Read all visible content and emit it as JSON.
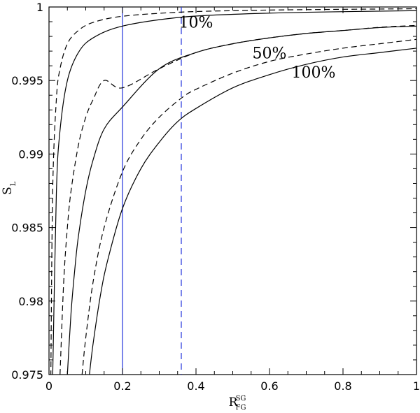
{
  "chart_data": {
    "type": "line",
    "xlabel": {
      "main": "R",
      "sup": "SG",
      "sub": "FG"
    },
    "ylabel": {
      "main": "S",
      "sub": "L"
    },
    "xlim": [
      0,
      1
    ],
    "ylim": [
      0.975,
      1
    ],
    "x_ticks": [
      0,
      0.2,
      0.4,
      0.6,
      0.8,
      1
    ],
    "x_tick_labels": [
      "0",
      "0.2",
      "0.4",
      "0.6",
      "0.8",
      "1"
    ],
    "y_ticks": [
      0.975,
      0.98,
      0.985,
      0.99,
      0.995,
      1
    ],
    "y_tick_labels": [
      "0.975",
      "0.98",
      "0.985",
      "0.99",
      "0.995",
      "1"
    ],
    "grid": false,
    "annotations": [
      {
        "text": "10%",
        "x": 0.4,
        "y": 0.9986
      },
      {
        "text": "50%",
        "x": 0.6,
        "y": 0.9965
      },
      {
        "text": "100%",
        "x": 0.72,
        "y": 0.9952
      }
    ],
    "series": [
      {
        "style": "solid",
        "color": "#000000",
        "x": [
          0.01,
          0.02,
          0.03,
          0.05,
          0.08,
          0.12,
          0.2,
          0.35,
          0.5,
          0.7,
          1.0
        ],
        "y": [
          0.9748,
          0.9873,
          0.9916,
          0.995,
          0.9969,
          0.9979,
          0.9987,
          0.99928,
          0.9995,
          0.99964,
          0.99975
        ]
      },
      {
        "style": "dashed",
        "color": "#000000",
        "x": [
          0.005,
          0.01,
          0.02,
          0.03,
          0.05,
          0.08,
          0.12,
          0.2,
          0.35,
          0.5,
          0.7,
          1.0
        ],
        "y": [
          0.9749,
          0.9875,
          0.9937,
          0.9958,
          0.9975,
          0.9984,
          0.99895,
          0.99937,
          0.99964,
          0.99975,
          0.99982,
          0.99988
        ]
      },
      {
        "style": "solid",
        "color": "#000000",
        "x": [
          0.05,
          0.06,
          0.07,
          0.08,
          0.1,
          0.12,
          0.15,
          0.2,
          0.3,
          0.4,
          0.5,
          0.6,
          0.7,
          0.8,
          0.9,
          1.0
        ],
        "y": [
          0.975,
          0.9792,
          0.9821,
          0.9844,
          0.9875,
          0.9896,
          0.9917,
          0.9932,
          0.9958,
          0.9969,
          0.9975,
          0.9979,
          0.9982,
          0.9984,
          0.9986,
          0.9987
        ]
      },
      {
        "style": "dashed",
        "color": "#000000",
        "x": [
          0.03,
          0.04,
          0.05,
          0.06,
          0.08,
          0.1,
          0.12,
          0.15,
          0.2,
          0.3,
          0.4,
          0.5,
          0.6,
          0.7,
          0.8,
          0.9,
          1.0
        ],
        "y": [
          0.975,
          0.9813,
          0.985,
          0.9875,
          0.9906,
          0.9925,
          0.9937,
          0.995,
          0.9945,
          0.9958,
          0.9969,
          0.9975,
          0.9979,
          0.9982,
          0.9984,
          0.99862,
          0.99875
        ]
      },
      {
        "style": "solid",
        "color": "#000000",
        "x": [
          0.11,
          0.12,
          0.14,
          0.16,
          0.2,
          0.25,
          0.3,
          0.35,
          0.4,
          0.5,
          0.6,
          0.7,
          0.8,
          0.9,
          1.0
        ],
        "y": [
          0.975,
          0.9771,
          0.9804,
          0.9828,
          0.9863,
          0.989,
          0.9908,
          0.9922,
          0.9931,
          0.9945,
          0.9954,
          0.9961,
          0.9966,
          0.9969,
          0.9972
        ]
      },
      {
        "style": "dashed",
        "color": "#000000",
        "x": [
          0.09,
          0.1,
          0.12,
          0.15,
          0.2,
          0.25,
          0.3,
          0.36,
          0.4,
          0.5,
          0.6,
          0.7,
          0.8,
          0.9,
          1.0
        ],
        "y": [
          0.975,
          0.9775,
          0.9813,
          0.985,
          0.9888,
          0.991,
          0.9925,
          0.9938,
          0.9944,
          0.9955,
          0.9963,
          0.9968,
          0.9972,
          0.9975,
          0.9978
        ]
      }
    ],
    "reference_lines": [
      {
        "x": 0.2,
        "style": "solid",
        "color": "#2233dd"
      },
      {
        "x": 0.36,
        "style": "dashed",
        "color": "#2233dd"
      }
    ]
  }
}
